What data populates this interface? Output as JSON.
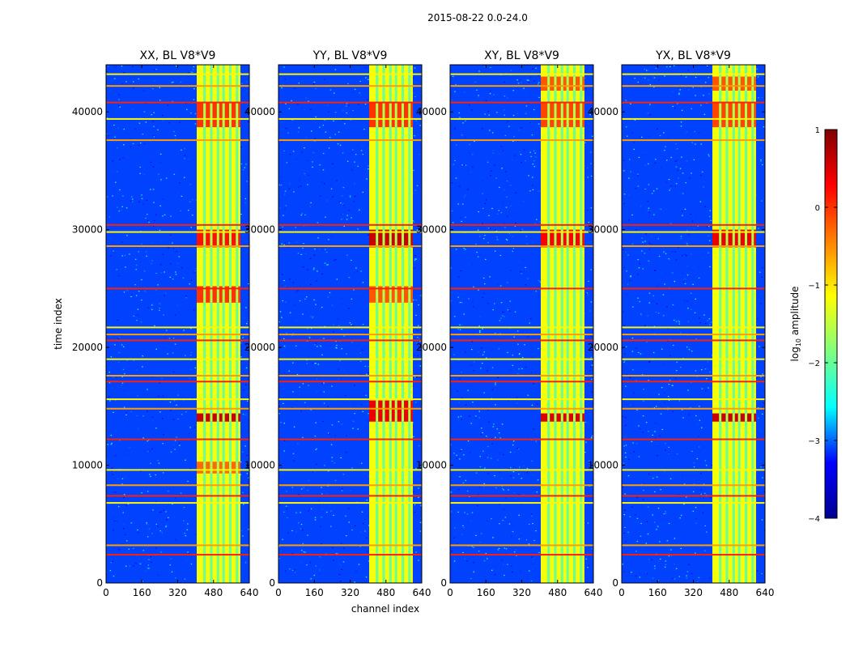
{
  "figure": {
    "suptitle": "2015-08-22 0.0-24.0",
    "xlabel": "channel index",
    "ylabel": "time index"
  },
  "colorbar": {
    "label_prefix": "log",
    "label_sub": "10",
    "label_suffix": " amplitude",
    "min": -4,
    "max": 1,
    "ticks": [
      1,
      0,
      -1,
      -2,
      -3,
      -4
    ],
    "tick_labels": [
      "1",
      "0",
      "−1",
      "−2",
      "−3",
      "−4"
    ],
    "colormap": "jet",
    "jet_stops": [
      "#00008f",
      "#0000ff",
      "#00ffff",
      "#80ff80",
      "#ffff00",
      "#ff8000",
      "#ff0000",
      "#800000"
    ]
  },
  "chart_data": [
    {
      "type": "heatmap",
      "title": "XX, BL V8*V9",
      "xlim": [
        0,
        640
      ],
      "ylim": [
        0,
        44000
      ],
      "xticks": [
        0,
        160,
        320,
        480,
        640
      ],
      "yticks": [
        0,
        10000,
        20000,
        30000,
        40000
      ],
      "xtick_labels": [
        "0",
        "160",
        "320",
        "480",
        "640"
      ],
      "ytick_labels": [
        "0",
        "10000",
        "20000",
        "30000",
        "40000"
      ],
      "background_level": -3.1,
      "band": {
        "x_start": 405,
        "x_end": 600,
        "level": -1.2,
        "stripes": [
          440,
          470,
          500,
          525,
          555,
          585
        ]
      },
      "hot_rows": [
        {
          "y0": 13700,
          "y1": 14400,
          "level": 0.6
        },
        {
          "y0": 28500,
          "y1": 30000,
          "level": 0.2
        },
        {
          "y0": 38700,
          "y1": 40800,
          "level": 0.0
        },
        {
          "y0": 23800,
          "y1": 25200,
          "level": 0.0
        },
        {
          "y0": 9300,
          "y1": 10300,
          "level": -0.3
        }
      ],
      "rfi_lines": [
        2400,
        3200,
        6800,
        7400,
        8300,
        9600,
        12200,
        14800,
        15600,
        17100,
        17600,
        19000,
        20600,
        21100,
        21700,
        25000,
        28600,
        29800,
        30400,
        37600,
        39400,
        40800,
        42200,
        43200
      ]
    },
    {
      "type": "heatmap",
      "title": "YY, BL V8*V9",
      "xlim": [
        0,
        640
      ],
      "ylim": [
        0,
        44000
      ],
      "xticks": [
        0,
        160,
        320,
        480,
        640
      ],
      "yticks": [
        0,
        10000,
        20000,
        30000,
        40000
      ],
      "xtick_labels": [
        "0",
        "160",
        "320",
        "480",
        "640"
      ],
      "ytick_labels": [
        "0",
        "10000",
        "20000",
        "30000",
        "40000"
      ],
      "background_level": -3.1,
      "band": {
        "x_start": 405,
        "x_end": 600,
        "level": -1.2,
        "stripes": [
          440,
          470,
          500,
          525,
          555,
          585
        ]
      },
      "hot_rows": [
        {
          "y0": 13700,
          "y1": 15500,
          "level": 0.4
        },
        {
          "y0": 28500,
          "y1": 30000,
          "level": 0.6
        },
        {
          "y0": 38700,
          "y1": 40800,
          "level": 0.0
        },
        {
          "y0": 23800,
          "y1": 25200,
          "level": -0.2
        }
      ],
      "rfi_lines": [
        2400,
        3200,
        6800,
        7400,
        8300,
        9600,
        12200,
        14800,
        15600,
        17100,
        17600,
        19000,
        20600,
        21100,
        21700,
        25000,
        28600,
        29800,
        30400,
        37600,
        39400,
        40800,
        42200,
        43200
      ]
    },
    {
      "type": "heatmap",
      "title": "XY, BL V8*V9",
      "xlim": [
        0,
        640
      ],
      "ylim": [
        0,
        44000
      ],
      "xticks": [
        0,
        160,
        320,
        480,
        640
      ],
      "yticks": [
        0,
        10000,
        20000,
        30000,
        40000
      ],
      "xtick_labels": [
        "0",
        "160",
        "320",
        "480",
        "640"
      ],
      "ytick_labels": [
        "0",
        "10000",
        "20000",
        "30000",
        "40000"
      ],
      "background_level": -3.1,
      "band": {
        "x_start": 405,
        "x_end": 600,
        "level": -1.2,
        "stripes": [
          440,
          470,
          500,
          525,
          555,
          585
        ]
      },
      "hot_rows": [
        {
          "y0": 13700,
          "y1": 14400,
          "level": 0.5
        },
        {
          "y0": 28500,
          "y1": 30000,
          "level": 0.3
        },
        {
          "y0": 38700,
          "y1": 40800,
          "level": -0.1
        },
        {
          "y0": 41800,
          "y1": 43000,
          "level": -0.2
        }
      ],
      "rfi_lines": [
        2400,
        3200,
        6800,
        7400,
        8300,
        9600,
        12200,
        14800,
        15600,
        17100,
        17600,
        19000,
        20600,
        21100,
        21700,
        25000,
        28600,
        29800,
        30400,
        37600,
        39400,
        40800,
        42200,
        43200
      ]
    },
    {
      "type": "heatmap",
      "title": "YX, BL V8*V9",
      "xlim": [
        0,
        640
      ],
      "ylim": [
        0,
        44000
      ],
      "xticks": [
        0,
        160,
        320,
        480,
        640
      ],
      "yticks": [
        0,
        10000,
        20000,
        30000,
        40000
      ],
      "xtick_labels": [
        "0",
        "160",
        "320",
        "480",
        "640"
      ],
      "ytick_labels": [
        "0",
        "10000",
        "20000",
        "30000",
        "40000"
      ],
      "background_level": -3.1,
      "band": {
        "x_start": 405,
        "x_end": 600,
        "level": -1.2,
        "stripes": [
          440,
          470,
          500,
          525,
          555,
          585
        ]
      },
      "hot_rows": [
        {
          "y0": 13700,
          "y1": 14400,
          "level": 0.6
        },
        {
          "y0": 28500,
          "y1": 30000,
          "level": 0.4
        },
        {
          "y0": 38700,
          "y1": 40800,
          "level": -0.1
        },
        {
          "y0": 41800,
          "y1": 43000,
          "level": -0.2
        }
      ],
      "rfi_lines": [
        2400,
        3200,
        6800,
        7400,
        8300,
        9600,
        12200,
        14800,
        15600,
        17100,
        17600,
        19000,
        20600,
        21100,
        21700,
        25000,
        28600,
        29800,
        30400,
        37600,
        39400,
        40800,
        42200,
        43200
      ]
    }
  ]
}
